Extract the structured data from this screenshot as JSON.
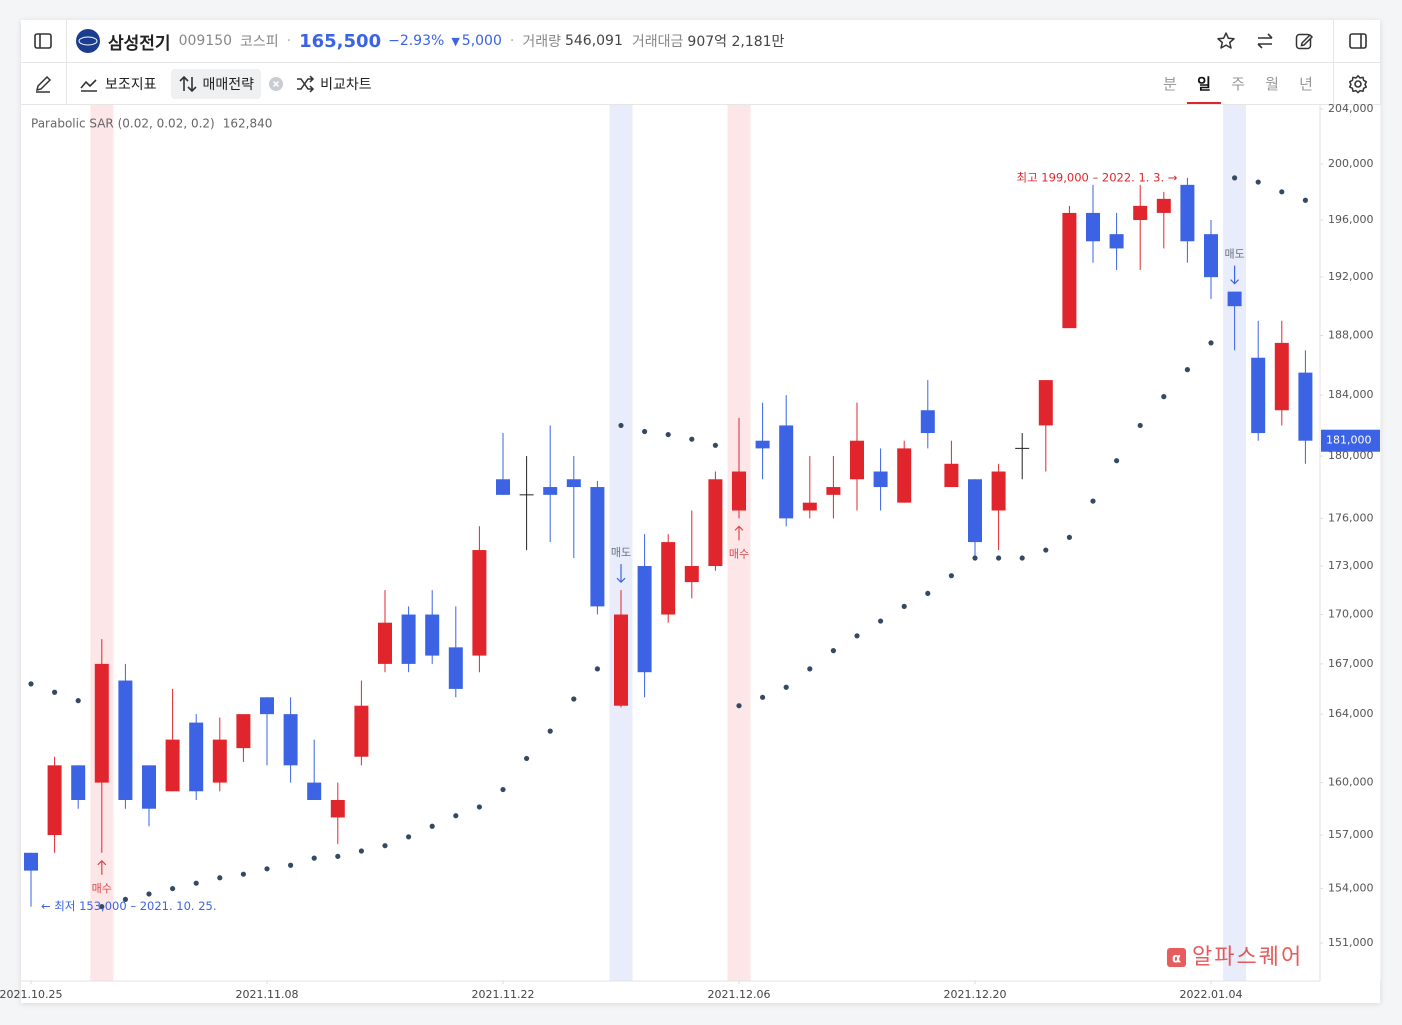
{
  "header": {
    "title": "삼성전기",
    "code": "009150",
    "market": "코스피",
    "price": "165,500",
    "change_pct": "−2.93%",
    "change": "5,000",
    "volume_label": "거래량",
    "volume": "546,091",
    "amount_label": "거래대금",
    "amount": "907억 2,181만"
  },
  "toolbar": {
    "indicators": "보조지표",
    "strategy": "매매전략",
    "compare": "비교차트",
    "periods": [
      "분",
      "일",
      "주",
      "월",
      "년"
    ],
    "selected_period": "일"
  },
  "chart_data": {
    "type": "candlestick",
    "log_scale": true,
    "grid": false,
    "categories": [
      "2021.10.25",
      null,
      null,
      null,
      null,
      null,
      null,
      null,
      null,
      null,
      "2021.11.08",
      null,
      null,
      null,
      null,
      null,
      null,
      null,
      null,
      null,
      "2021.11.22",
      null,
      null,
      null,
      null,
      null,
      null,
      null,
      null,
      null,
      "2021.12.06",
      null,
      null,
      null,
      null,
      null,
      null,
      null,
      null,
      null,
      "2021.12.20",
      null,
      null,
      null,
      null,
      null,
      null,
      null,
      null,
      null,
      "2022.01.04",
      null,
      null,
      null,
      null
    ],
    "open": [
      156000,
      157000,
      161000,
      160000,
      166000,
      161000,
      159500,
      163500,
      160000,
      162000,
      165000,
      164000,
      160000,
      158000,
      161500,
      167000,
      170000,
      170000,
      168000,
      167500,
      178500,
      177500,
      178000,
      178500,
      178000,
      164500,
      173000,
      170000,
      172000,
      173000,
      176500,
      181000,
      182000,
      176500,
      177500,
      178500,
      179000,
      177000,
      183000,
      178000,
      178500,
      176500,
      180500,
      182000,
      188500,
      196500,
      195000,
      196000,
      196500,
      198500,
      195000,
      191000,
      186500,
      183000,
      185500
    ],
    "high": [
      156000,
      161500,
      161000,
      168500,
      167000,
      161000,
      165500,
      164000,
      163800,
      164000,
      165000,
      165000,
      162500,
      160000,
      166000,
      171500,
      170500,
      171500,
      170500,
      175500,
      181500,
      180000,
      182000,
      180000,
      178400,
      171500,
      175000,
      175000,
      176500,
      179000,
      182500,
      183500,
      184000,
      180000,
      180000,
      183500,
      180500,
      181000,
      185000,
      181000,
      178500,
      179500,
      181500,
      185000,
      197000,
      198500,
      196500,
      198500,
      198000,
      199000,
      196000,
      191000,
      189000,
      189000,
      187000
    ],
    "low": [
      153000,
      156000,
      158500,
      156000,
      158500,
      157500,
      159500,
      159000,
      159500,
      161200,
      161000,
      160000,
      159000,
      156500,
      161000,
      166500,
      166500,
      167000,
      165000,
      166500,
      177500,
      174000,
      174500,
      173500,
      170000,
      164400,
      165000,
      169500,
      171000,
      172700,
      176000,
      178500,
      175500,
      176000,
      176000,
      176500,
      176500,
      177000,
      180500,
      178000,
      173500,
      174000,
      178500,
      179000,
      188500,
      193000,
      192500,
      192500,
      194000,
      193000,
      190500,
      187000,
      181000,
      182000,
      179500
    ],
    "close": [
      155000,
      161000,
      159000,
      167000,
      159000,
      158500,
      162500,
      159500,
      162500,
      164000,
      164000,
      161000,
      159000,
      159000,
      164500,
      169500,
      167000,
      167500,
      165500,
      174000,
      177500,
      177500,
      177500,
      178000,
      170500,
      170000,
      166500,
      174500,
      173000,
      178500,
      179000,
      180500,
      176000,
      177000,
      178000,
      181000,
      178000,
      180500,
      181500,
      179500,
      174500,
      179000,
      180500,
      185000,
      196500,
      194500,
      194000,
      197000,
      197500,
      194500,
      192000,
      190000,
      181500,
      187500,
      181000
    ],
    "up_color": "#e0262c",
    "down_color": "#3b63e3",
    "flat_color": "#222222",
    "sar": {
      "name": "Parabolic SAR (0.02, 0.02, 0.2)",
      "color": "#344a63",
      "values": [
        165800,
        165300,
        164800,
        153000,
        153400,
        153700,
        154000,
        154300,
        154600,
        154800,
        155100,
        155300,
        155700,
        155800,
        156100,
        156400,
        156900,
        157500,
        158100,
        158600,
        159600,
        161400,
        163000,
        164900,
        166700,
        182000,
        181600,
        181400,
        181100,
        180700,
        164500,
        165000,
        165600,
        166700,
        167800,
        168700,
        169600,
        170500,
        171300,
        172400,
        173500,
        173500,
        173500,
        174000,
        174800,
        177100,
        179700,
        182000,
        183900,
        185700,
        187500,
        199000,
        198700,
        198000,
        197400
      ]
    },
    "sar_value": {
      "value": 162840,
      "label": "162,840"
    },
    "signals": [
      null,
      null,
      null,
      "매수",
      null,
      null,
      null,
      null,
      null,
      null,
      null,
      null,
      null,
      null,
      null,
      null,
      null,
      null,
      null,
      null,
      null,
      null,
      null,
      null,
      null,
      "매도",
      null,
      null,
      null,
      null,
      "매수",
      null,
      null,
      null,
      null,
      null,
      null,
      null,
      null,
      null,
      null,
      null,
      null,
      null,
      null,
      null,
      null,
      null,
      null,
      null,
      null,
      "매도",
      null,
      null,
      null
    ],
    "signal_styles": {
      "매수": {
        "direction": "buy",
        "color": "#d9474a",
        "band": "#fde6e7"
      },
      "매도": {
        "direction": "sell",
        "color": "#6b7280",
        "band": "#e9ecfb"
      }
    },
    "high_annotation": "최고 199,000 – 2022. 1. 3. →",
    "high_annotation_color": "#e0262c",
    "low_annotation": "← 최저 153,000 – 2021. 10. 25.",
    "low_annotation_color": "#3b63e3",
    "last_price": {
      "value": 181000,
      "label": "181,000"
    },
    "last_price_color": "#3b63e3",
    "ylim": [
      148950,
      204300
    ],
    "yticks": [
      {
        "value": 151000,
        "label": "151,000"
      },
      {
        "value": 154000,
        "label": "154,000"
      },
      {
        "value": 157000,
        "label": "157,000"
      },
      {
        "value": 160000,
        "label": "160,000"
      },
      {
        "value": 164000,
        "label": "164,000"
      },
      {
        "value": 167000,
        "label": "167,000"
      },
      {
        "value": 170000,
        "label": "170,000"
      },
      {
        "value": 173000,
        "label": "173,000"
      },
      {
        "value": 176000,
        "label": "176,000"
      },
      {
        "value": 180000,
        "label": "180,000"
      },
      {
        "value": 184000,
        "label": "184,000"
      },
      {
        "value": 188000,
        "label": "188,000"
      },
      {
        "value": 192000,
        "label": "192,000"
      },
      {
        "value": 196000,
        "label": "196,000"
      },
      {
        "value": 200000,
        "label": "200,000"
      },
      {
        "value": 204000,
        "label": "204,000"
      }
    ],
    "watermark": "알파스퀘어"
  }
}
